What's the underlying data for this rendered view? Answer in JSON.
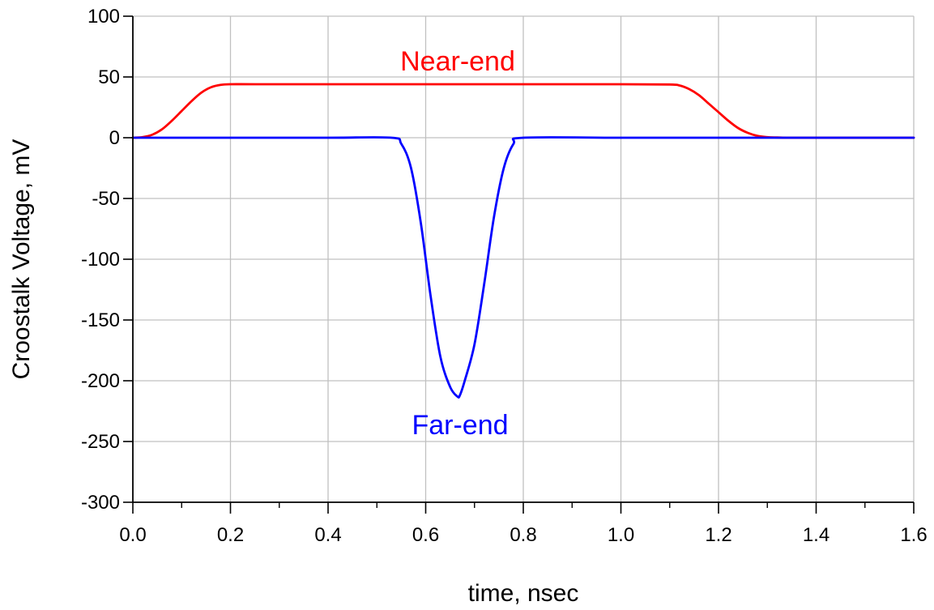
{
  "chart_data": {
    "type": "line",
    "xlabel": "time, nsec",
    "ylabel": "Croostalk Voltage, mV",
    "xlim": [
      0.0,
      1.6
    ],
    "ylim": [
      -300,
      100
    ],
    "x_ticks": [
      "0.0",
      "0.2",
      "0.4",
      "0.6",
      "0.8",
      "1.0",
      "1.2",
      "1.4",
      "1.6"
    ],
    "y_ticks": [
      "100",
      "50",
      "0",
      "-50",
      "-100",
      "-150",
      "-200",
      "-250",
      "-300"
    ],
    "grid": true,
    "series": [
      {
        "name": "Near-end",
        "color": "#ff0000",
        "x": [
          0.0,
          0.02,
          0.04,
          0.06,
          0.08,
          0.1,
          0.12,
          0.14,
          0.16,
          0.18,
          0.2,
          0.25,
          0.4,
          0.6,
          0.8,
          1.0,
          1.1,
          1.12,
          1.14,
          1.16,
          1.18,
          1.2,
          1.22,
          1.24,
          1.26,
          1.28,
          1.3,
          1.32,
          1.34,
          1.36,
          1.4,
          1.6
        ],
        "values": [
          0,
          0.5,
          2.5,
          7,
          14,
          22,
          30,
          37,
          41.5,
          43.5,
          44,
          44,
          44,
          44,
          44,
          44,
          43.8,
          43,
          40,
          35,
          28,
          21,
          14,
          8,
          4,
          1.5,
          0.5,
          0.2,
          0,
          0,
          0,
          0
        ]
      },
      {
        "name": "Far-end",
        "color": "#0000ff",
        "x": [
          0.0,
          0.2,
          0.4,
          0.53,
          0.55,
          0.57,
          0.59,
          0.61,
          0.63,
          0.65,
          0.665,
          0.67,
          0.68,
          0.7,
          0.72,
          0.74,
          0.76,
          0.78,
          0.8,
          1.0,
          1.2,
          1.4,
          1.6
        ],
        "values": [
          0,
          0,
          0,
          0,
          -5,
          -25,
          -70,
          -130,
          -180,
          -205,
          -213,
          -212,
          -200,
          -170,
          -120,
          -65,
          -25,
          -5,
          0,
          0,
          0,
          0,
          0
        ]
      }
    ],
    "annotations": [
      "Near-end",
      "Far-end"
    ]
  }
}
